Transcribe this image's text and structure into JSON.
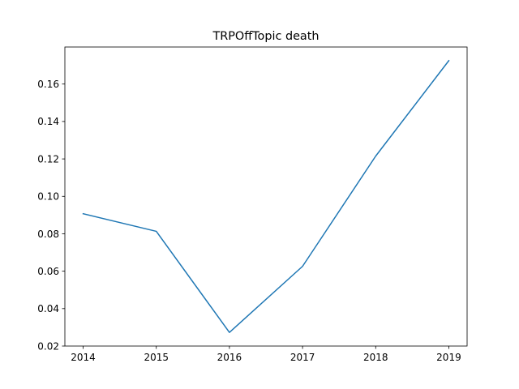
{
  "chart_data": {
    "type": "line",
    "title": "TRPOffTopic death",
    "xlabel": "",
    "ylabel": "",
    "x": [
      2014,
      2015,
      2016,
      2017,
      2018,
      2019
    ],
    "series": [
      {
        "name": "TRPOffTopic death",
        "values": [
          0.0907,
          0.0813,
          0.0273,
          0.0626,
          0.1215,
          0.1725
        ],
        "color": "#1f77b4"
      }
    ],
    "xticks": [
      "2014",
      "2015",
      "2016",
      "2017",
      "2018",
      "2019"
    ],
    "yticks": [
      "0.02",
      "0.04",
      "0.06",
      "0.08",
      "0.10",
      "0.12",
      "0.14",
      "0.16"
    ],
    "ytick_values": [
      0.02,
      0.04,
      0.06,
      0.08,
      0.1,
      0.12,
      0.14,
      0.16
    ],
    "xlim": [
      2013.75,
      2019.25
    ],
    "ylim": [
      0.02,
      0.1798
    ],
    "grid": false,
    "legend": "none"
  }
}
